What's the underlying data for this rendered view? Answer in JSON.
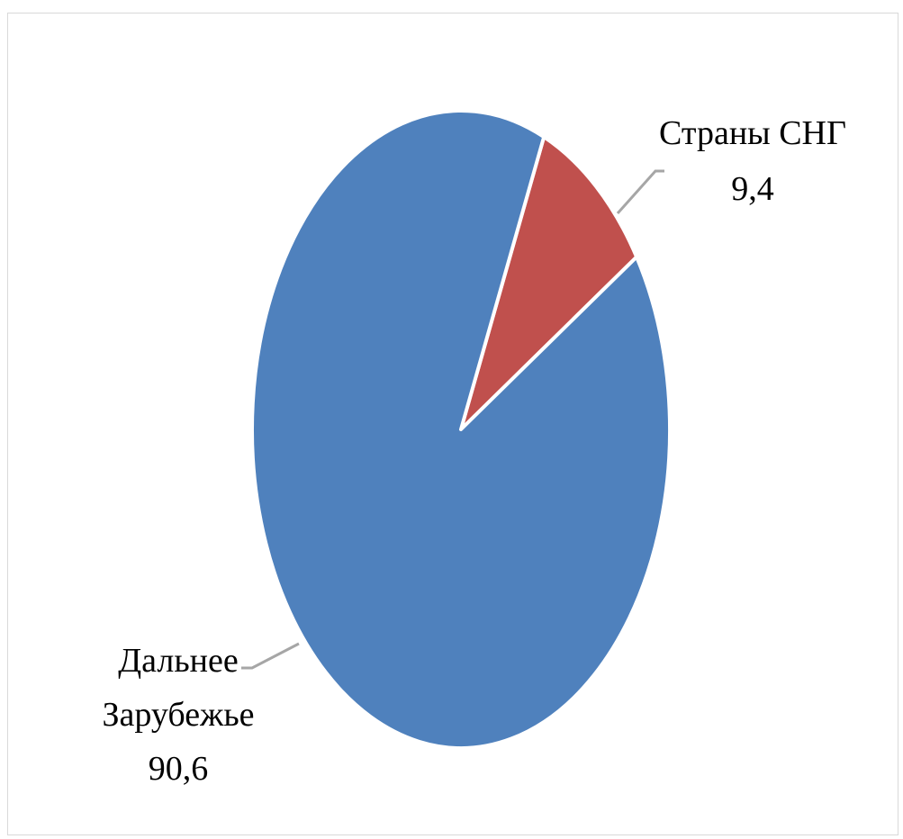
{
  "chart_data": {
    "type": "pie",
    "title": "",
    "slices": [
      {
        "label": "Дальнее Зарубежье",
        "label_lines": [
          "Дальнее",
          "Зарубежье"
        ],
        "value": 90.6,
        "value_text": "90,6",
        "color": "#4f81bd"
      },
      {
        "label": "Страны СНГ",
        "label_lines": [
          "Страны СНГ"
        ],
        "value": 9.4,
        "value_text": "9,4",
        "color": "#c0504d"
      }
    ],
    "legend": "none",
    "data_labels": "outside with leader lines"
  }
}
